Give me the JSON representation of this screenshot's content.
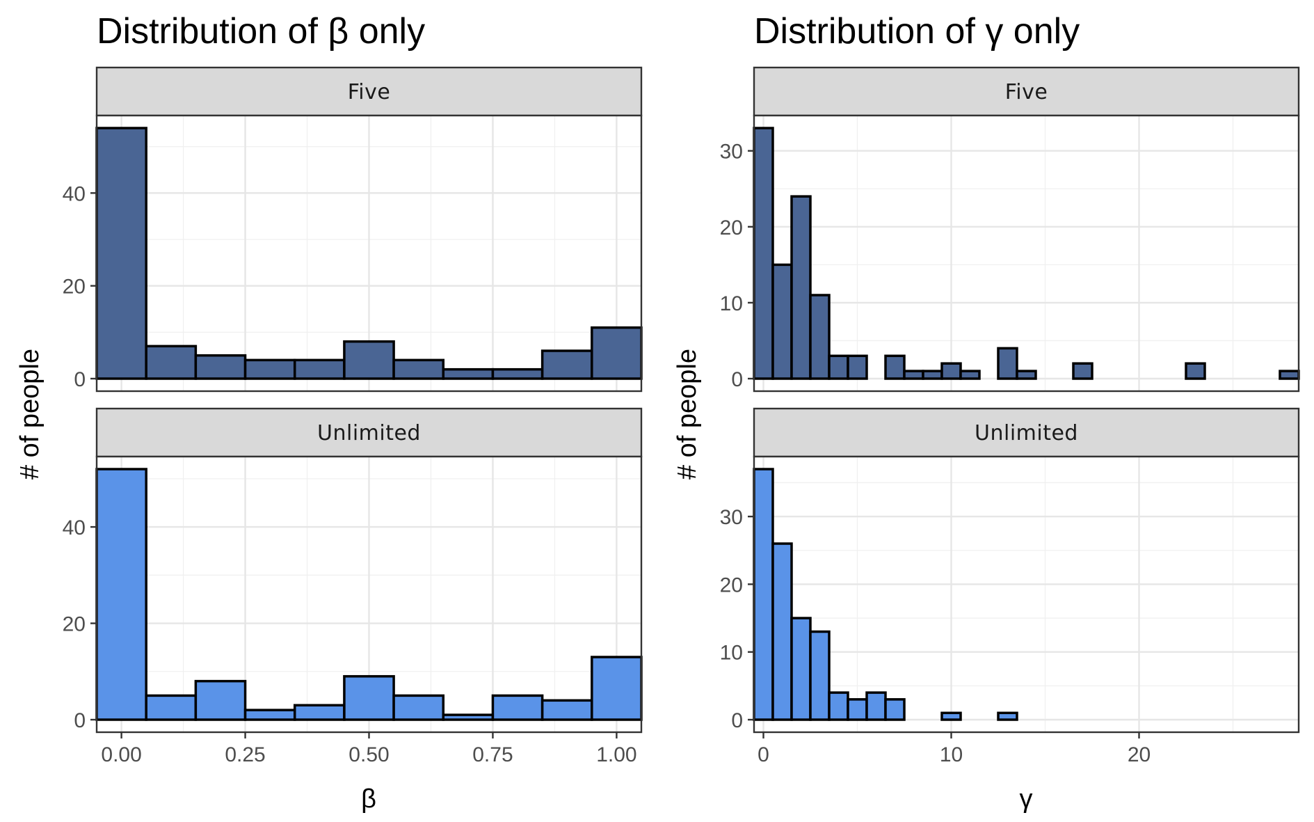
{
  "colors": {
    "five": "#4a6594",
    "unlimited": "#5a93e8"
  },
  "chart_data": [
    {
      "type": "bar",
      "subtype": "histogram",
      "title": "Distribution of β only",
      "xlabel": "β",
      "ylabel": "# of people",
      "bin_width": 0.1,
      "xlim": [
        -0.05,
        1.05
      ],
      "xticks": [
        0,
        0.25,
        0.5,
        0.75,
        1
      ],
      "xtick_labels": [
        "0.00",
        "0.25",
        "0.50",
        "0.75",
        "1.00"
      ],
      "grid": true,
      "facets": [
        {
          "strip": "Five",
          "ylim": [
            0,
            54
          ],
          "yticks": [
            0,
            20,
            40
          ],
          "x": [
            0,
            0.1,
            0.2,
            0.3,
            0.4,
            0.5,
            0.6,
            0.7,
            0.8,
            0.9,
            1.0
          ],
          "values": [
            54,
            7,
            5,
            4,
            4,
            8,
            4,
            2,
            2,
            6,
            11
          ]
        },
        {
          "strip": "Unlimited",
          "ylim": [
            0,
            52
          ],
          "yticks": [
            0,
            20,
            40
          ],
          "x": [
            0,
            0.1,
            0.2,
            0.3,
            0.4,
            0.5,
            0.6,
            0.7,
            0.8,
            0.9,
            1.0
          ],
          "values": [
            52,
            5,
            8,
            2,
            3,
            9,
            5,
            1,
            5,
            4,
            13
          ]
        }
      ]
    },
    {
      "type": "bar",
      "subtype": "histogram",
      "title": "Distribution of γ only",
      "xlabel": "γ",
      "ylabel": "# of people",
      "bin_width": 1,
      "xlim": [
        -0.5,
        28.5
      ],
      "xticks": [
        0,
        10,
        20
      ],
      "xtick_labels": [
        "0",
        "10",
        "20"
      ],
      "grid": true,
      "facets": [
        {
          "strip": "Five",
          "ylim": [
            0,
            33
          ],
          "yticks": [
            0,
            10,
            20,
            30
          ],
          "x": [
            0,
            1,
            2,
            3,
            4,
            5,
            6,
            7,
            8,
            9,
            10,
            11,
            12,
            13,
            14,
            15,
            16,
            17,
            18,
            19,
            20,
            21,
            22,
            23,
            24,
            25,
            26,
            27,
            28
          ],
          "values": [
            33,
            15,
            24,
            11,
            3,
            3,
            0,
            3,
            1,
            1,
            2,
            1,
            0,
            4,
            1,
            0,
            0,
            2,
            0,
            0,
            0,
            0,
            0,
            2,
            0,
            0,
            0,
            0,
            1
          ]
        },
        {
          "strip": "Unlimited",
          "ylim": [
            0,
            37
          ],
          "yticks": [
            0,
            10,
            20,
            30
          ],
          "x": [
            0,
            1,
            2,
            3,
            4,
            5,
            6,
            7,
            8,
            9,
            10,
            11,
            12,
            13,
            14,
            15,
            16,
            17,
            18,
            19,
            20,
            21,
            22,
            23,
            24,
            25,
            26,
            27,
            28
          ],
          "values": [
            37,
            26,
            15,
            13,
            4,
            3,
            4,
            3,
            0,
            0,
            1,
            0,
            0,
            1,
            0,
            0,
            0,
            0,
            0,
            0,
            0,
            0,
            0,
            0,
            0,
            0,
            0,
            0,
            0
          ]
        }
      ]
    }
  ]
}
